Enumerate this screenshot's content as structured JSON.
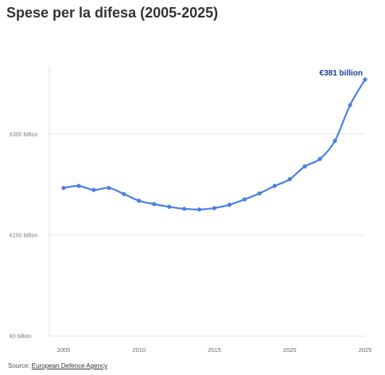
{
  "chart_data": {
    "type": "line",
    "title": "Spese per la difesa (2005-2025)",
    "xlabel": "",
    "ylabel": "",
    "x": [
      2005,
      2006,
      2007,
      2008,
      2009,
      2010,
      2011,
      2012,
      2013,
      2014,
      2015,
      2016,
      2017,
      2018,
      2019,
      2020,
      2021,
      2022,
      2023,
      2024,
      2025
    ],
    "series": [
      {
        "values": [
          220,
          223,
          217,
          220,
          211,
          201,
          196,
          192,
          189,
          188,
          190,
          195,
          203,
          212,
          223,
          233,
          252,
          263,
          290,
          343,
          381
        ],
        "color": "#4a7fe0"
      }
    ],
    "ylim": [
      0,
      400
    ],
    "yticks": [
      {
        "value": 0,
        "label": "€0 billion"
      },
      {
        "value": 150,
        "label": "€150 billion"
      },
      {
        "value": 300,
        "label": "€300 billion"
      }
    ],
    "xticks": [
      2005,
      2010,
      2015,
      2020,
      2025
    ],
    "last_point_label": "€381 billion",
    "grid": true
  },
  "source": {
    "prefix": "Source: ",
    "link_text": "European Defence Agency"
  }
}
